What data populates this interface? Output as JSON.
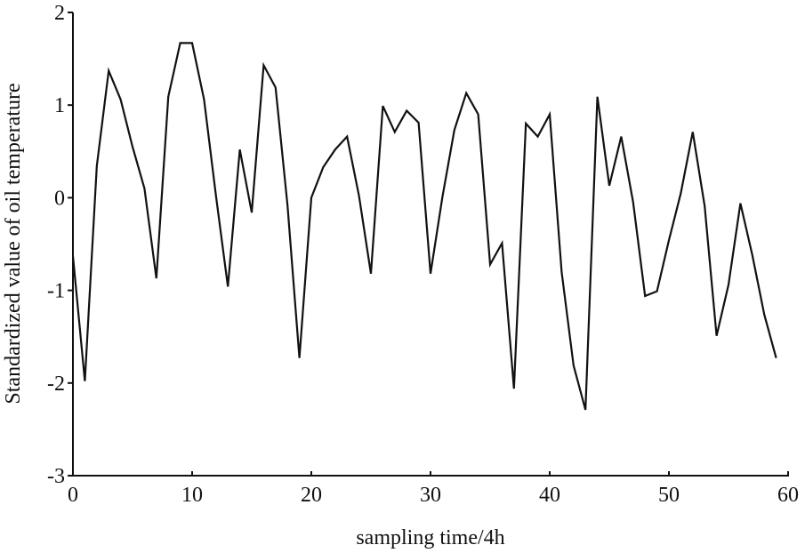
{
  "chart_data": {
    "type": "line",
    "title": "",
    "xlabel": "sampling time/4h",
    "ylabel": "Standardized value of oil temperature",
    "xlim": [
      0,
      60
    ],
    "ylim": [
      -3,
      2
    ],
    "xticks": [
      0,
      10,
      20,
      30,
      40,
      50,
      60
    ],
    "yticks": [
      2,
      1,
      0,
      -1,
      -2,
      -3
    ],
    "grid": false,
    "legend": null,
    "line_color": "#111111",
    "series": [
      {
        "name": "oil temperature",
        "x": [
          0,
          1,
          2,
          3,
          4,
          5,
          6,
          7,
          8,
          9,
          10,
          11,
          12,
          13,
          14,
          15,
          16,
          17,
          18,
          19,
          20,
          21,
          22,
          23,
          24,
          25,
          26,
          27,
          28,
          29,
          30,
          31,
          32,
          33,
          34,
          35,
          36,
          37,
          38,
          39,
          40,
          41,
          42,
          43,
          44,
          45,
          46,
          47,
          48,
          49,
          50,
          51,
          52,
          53,
          54,
          55,
          56,
          57,
          58,
          59
        ],
        "values": [
          -0.63,
          -1.98,
          0.34,
          1.37,
          1.06,
          0.55,
          0.1,
          -0.87,
          1.09,
          1.67,
          1.67,
          1.06,
          0.02,
          -0.96,
          0.52,
          -0.16,
          1.43,
          1.19,
          -0.08,
          -1.73,
          0.0,
          0.33,
          0.52,
          0.66,
          0.02,
          -0.82,
          0.99,
          0.71,
          0.94,
          0.81,
          -0.82,
          0.01,
          0.73,
          1.13,
          0.9,
          -0.72,
          -0.49,
          -2.06,
          0.8,
          0.66,
          0.9,
          -0.8,
          -1.81,
          -2.29,
          1.09,
          0.13,
          0.66,
          -0.05,
          -1.06,
          -1.01,
          -0.46,
          0.05,
          0.71,
          -0.09,
          -1.49,
          -0.94,
          -0.06,
          -0.62,
          -1.26,
          -1.73
        ]
      }
    ]
  },
  "labels": {
    "xlabel": "sampling time/4h",
    "ylabel": "Standardized value of oil temperature",
    "xticks": [
      "0",
      "10",
      "20",
      "30",
      "40",
      "50",
      "60"
    ],
    "yticks": [
      "2",
      "1",
      "0",
      "-1",
      "-2",
      "-3"
    ]
  }
}
